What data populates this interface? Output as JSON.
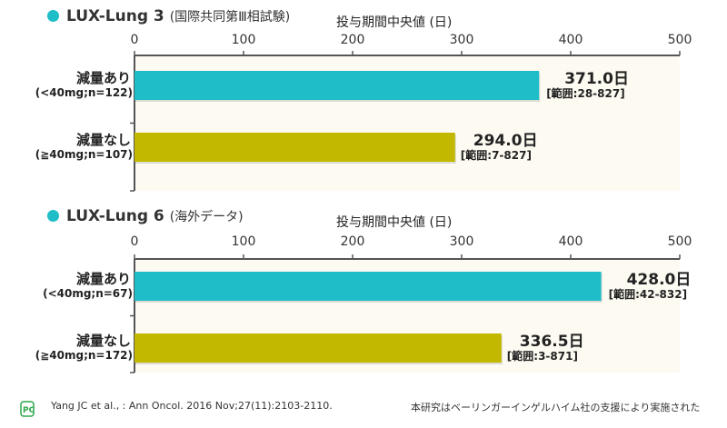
{
  "colors": {
    "reduced": "#1fbdc8",
    "not_reduced": "#c3b800",
    "plot_bg": "#fdfaf1",
    "axis": "#555555"
  },
  "chart_data": [
    {
      "type": "bar",
      "orientation": "horizontal",
      "title": "LUX-Lung 3",
      "subtitle": "(国際共同第Ⅲ相試験)",
      "xlabel": "投与期間中央値 (日)",
      "xlim": [
        0,
        500
      ],
      "ticks": [
        "0",
        "100",
        "200",
        "300",
        "400",
        "500"
      ],
      "categories": [
        {
          "label": "減量あり",
          "sub": "(<40mg;n=122)"
        },
        {
          "label": "減量なし",
          "sub": "(≧40mg;n=107)"
        }
      ],
      "values": [
        371.0,
        294.0
      ],
      "value_labels": [
        "371.0日",
        "294.0日"
      ],
      "range_labels": [
        "[範囲:28-827]",
        "[範囲:7-827]"
      ]
    },
    {
      "type": "bar",
      "orientation": "horizontal",
      "title": "LUX-Lung 6",
      "subtitle": "(海外データ)",
      "xlabel": "投与期間中央値 (日)",
      "xlim": [
        0,
        500
      ],
      "ticks": [
        "0",
        "100",
        "200",
        "300",
        "400",
        "500"
      ],
      "categories": [
        {
          "label": "減量あり",
          "sub": "(<40mg;n=67)"
        },
        {
          "label": "減量なし",
          "sub": "(≧40mg;n=172)"
        }
      ],
      "values": [
        428.0,
        336.5
      ],
      "value_labels": [
        "428.0日",
        "336.5日"
      ],
      "range_labels": [
        "[範囲:42-832]",
        "[範囲:3-871]"
      ]
    }
  ],
  "footer": {
    "logo": "PC",
    "citation": "Yang JC et al., : Ann Oncol. 2016 Nov;27(11):2103-2110.",
    "note": "本研究はベーリンガーインゲルハイム社の支援により実施された"
  }
}
